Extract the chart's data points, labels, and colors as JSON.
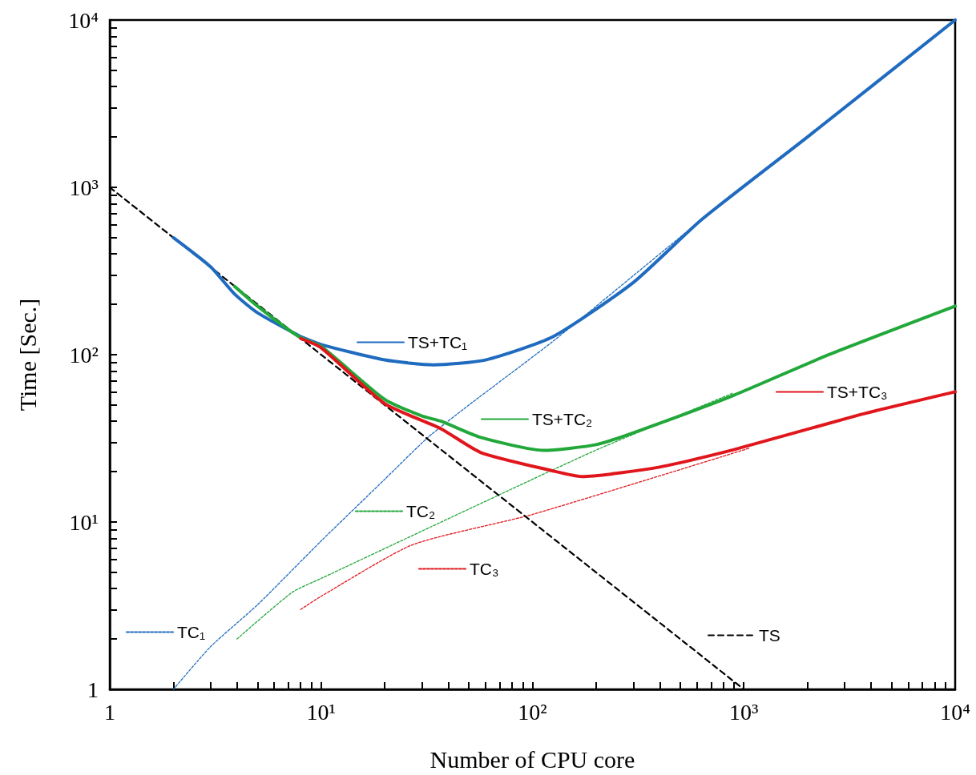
{
  "chart_data": {
    "type": "line",
    "xlabel": "Number of CPU core",
    "ylabel": "Time [Sec.]",
    "log": "xy",
    "legend": "center",
    "marker": "none",
    "grid": false,
    "xlim": [
      1,
      10000
    ],
    "ylim": [
      1,
      10000
    ],
    "xticks": [
      {
        "value": 1,
        "label": "1"
      },
      {
        "value": 2,
        "label": null
      },
      {
        "value": 3,
        "label": null
      },
      {
        "value": 4,
        "label": null
      },
      {
        "value": 5,
        "label": null
      },
      {
        "value": 6,
        "label": null
      },
      {
        "value": 7,
        "label": null
      },
      {
        "value": 8,
        "label": null
      },
      {
        "value": 9,
        "label": null
      },
      {
        "value": 10,
        "label": "10¹"
      },
      {
        "value": 20,
        "label": null
      },
      {
        "value": 30,
        "label": null
      },
      {
        "value": 40,
        "label": null
      },
      {
        "value": 50,
        "label": null
      },
      {
        "value": 60,
        "label": null
      },
      {
        "value": 70,
        "label": null
      },
      {
        "value": 80,
        "label": null
      },
      {
        "value": 90,
        "label": null
      },
      {
        "value": 100,
        "label": "10²"
      },
      {
        "value": 200,
        "label": null
      },
      {
        "value": 300,
        "label": null
      },
      {
        "value": 400,
        "label": null
      },
      {
        "value": 500,
        "label": null
      },
      {
        "value": 600,
        "label": null
      },
      {
        "value": 700,
        "label": null
      },
      {
        "value": 800,
        "label": null
      },
      {
        "value": 900,
        "label": null
      },
      {
        "value": 1000,
        "label": "10³"
      },
      {
        "value": 2000,
        "label": null
      },
      {
        "value": 3000,
        "label": null
      },
      {
        "value": 4000,
        "label": null
      },
      {
        "value": 5000,
        "label": null
      },
      {
        "value": 6000,
        "label": null
      },
      {
        "value": 7000,
        "label": null
      },
      {
        "value": 8000,
        "label": null
      },
      {
        "value": 9000,
        "label": null
      },
      {
        "value": 10000,
        "label": "10⁴"
      }
    ],
    "yticks": [
      {
        "value": 1,
        "label": "1"
      },
      {
        "value": 2,
        "label": null
      },
      {
        "value": 3,
        "label": null
      },
      {
        "value": 4,
        "label": null
      },
      {
        "value": 5,
        "label": null
      },
      {
        "value": 6,
        "label": null
      },
      {
        "value": 7,
        "label": null
      },
      {
        "value": 8,
        "label": null
      },
      {
        "value": 9,
        "label": null
      },
      {
        "value": 10,
        "label": "10¹"
      },
      {
        "value": 20,
        "label": null
      },
      {
        "value": 30,
        "label": null
      },
      {
        "value": 40,
        "label": null
      },
      {
        "value": 50,
        "label": null
      },
      {
        "value": 60,
        "label": null
      },
      {
        "value": 70,
        "label": null
      },
      {
        "value": 80,
        "label": null
      },
      {
        "value": 90,
        "label": null
      },
      {
        "value": 100,
        "label": "10²"
      },
      {
        "value": 200,
        "label": null
      },
      {
        "value": 300,
        "label": null
      },
      {
        "value": 400,
        "label": null
      },
      {
        "value": 500,
        "label": null
      },
      {
        "value": 600,
        "label": null
      },
      {
        "value": 700,
        "label": null
      },
      {
        "value": 800,
        "label": null
      },
      {
        "value": 900,
        "label": null
      },
      {
        "value": 1000,
        "label": "10³"
      },
      {
        "value": 2000,
        "label": null
      },
      {
        "value": 3000,
        "label": null
      },
      {
        "value": 4000,
        "label": null
      },
      {
        "value": 5000,
        "label": null
      },
      {
        "value": 6000,
        "label": null
      },
      {
        "value": 7000,
        "label": null
      },
      {
        "value": 8000,
        "label": null
      },
      {
        "value": 9000,
        "label": null
      },
      {
        "value": 10000,
        "label": "10⁴"
      }
    ],
    "series": [
      {
        "name": "TS+TC₁",
        "color": "#1f6bbf",
        "line_style": "solid",
        "x": [
          2,
          3,
          3.9,
          5,
          7.85,
          10,
          20,
          34,
          60,
          125,
          300,
          630,
          2000,
          10000
        ],
        "values": [
          500,
          335,
          230,
          178,
          130,
          115,
          93,
          87,
          93,
          128,
          270,
          640,
          2000,
          10000
        ]
      },
      {
        "name": "TS+TC₂",
        "color": "#22a83a",
        "line_style": "solid",
        "x": [
          3.9,
          5,
          7.85,
          10,
          20,
          30,
          37,
          57,
          113,
          200,
          317,
          890,
          2500,
          10000
        ],
        "values": [
          256,
          195,
          128,
          112,
          54,
          43,
          40,
          32,
          26.8,
          29,
          35,
          57,
          99.5,
          195
        ]
      },
      {
        "name": "TS+TC₃",
        "color": "#e0161c",
        "line_style": "solid",
        "x": [
          8,
          10,
          20,
          37,
          57,
          125,
          171,
          400,
          890,
          3500,
          10000
        ],
        "values": [
          125,
          110,
          51,
          36,
          26,
          20.2,
          18.7,
          21.3,
          27,
          43.6,
          60
        ]
      },
      {
        "name": "TC₁",
        "color": "#1f6bbf",
        "line_style": "dotted",
        "x": [
          2,
          3,
          5,
          10,
          20,
          32,
          50,
          129,
          630,
          1000,
          10000
        ],
        "values": [
          1,
          1.8,
          3.2,
          7.7,
          18,
          32,
          50,
          124,
          640,
          1000,
          10000
        ]
      },
      {
        "name": "TC₂",
        "color": "#22a83a",
        "line_style": "dotted",
        "x": [
          4,
          7.3,
          10,
          100,
          211,
          890
        ],
        "values": [
          2,
          3.8,
          4.6,
          18,
          27.7,
          59
        ]
      },
      {
        "name": "TC₃",
        "color": "#e0161c",
        "line_style": "dotted",
        "x": [
          8,
          10,
          27,
          100,
          1070
        ],
        "values": [
          3,
          3.6,
          7.3,
          11.1,
          27.7
        ]
      },
      {
        "name": "TS",
        "color": "#000000",
        "line_style": "dashed",
        "x": [
          1,
          1000
        ],
        "values": [
          1000,
          1
        ]
      }
    ]
  }
}
